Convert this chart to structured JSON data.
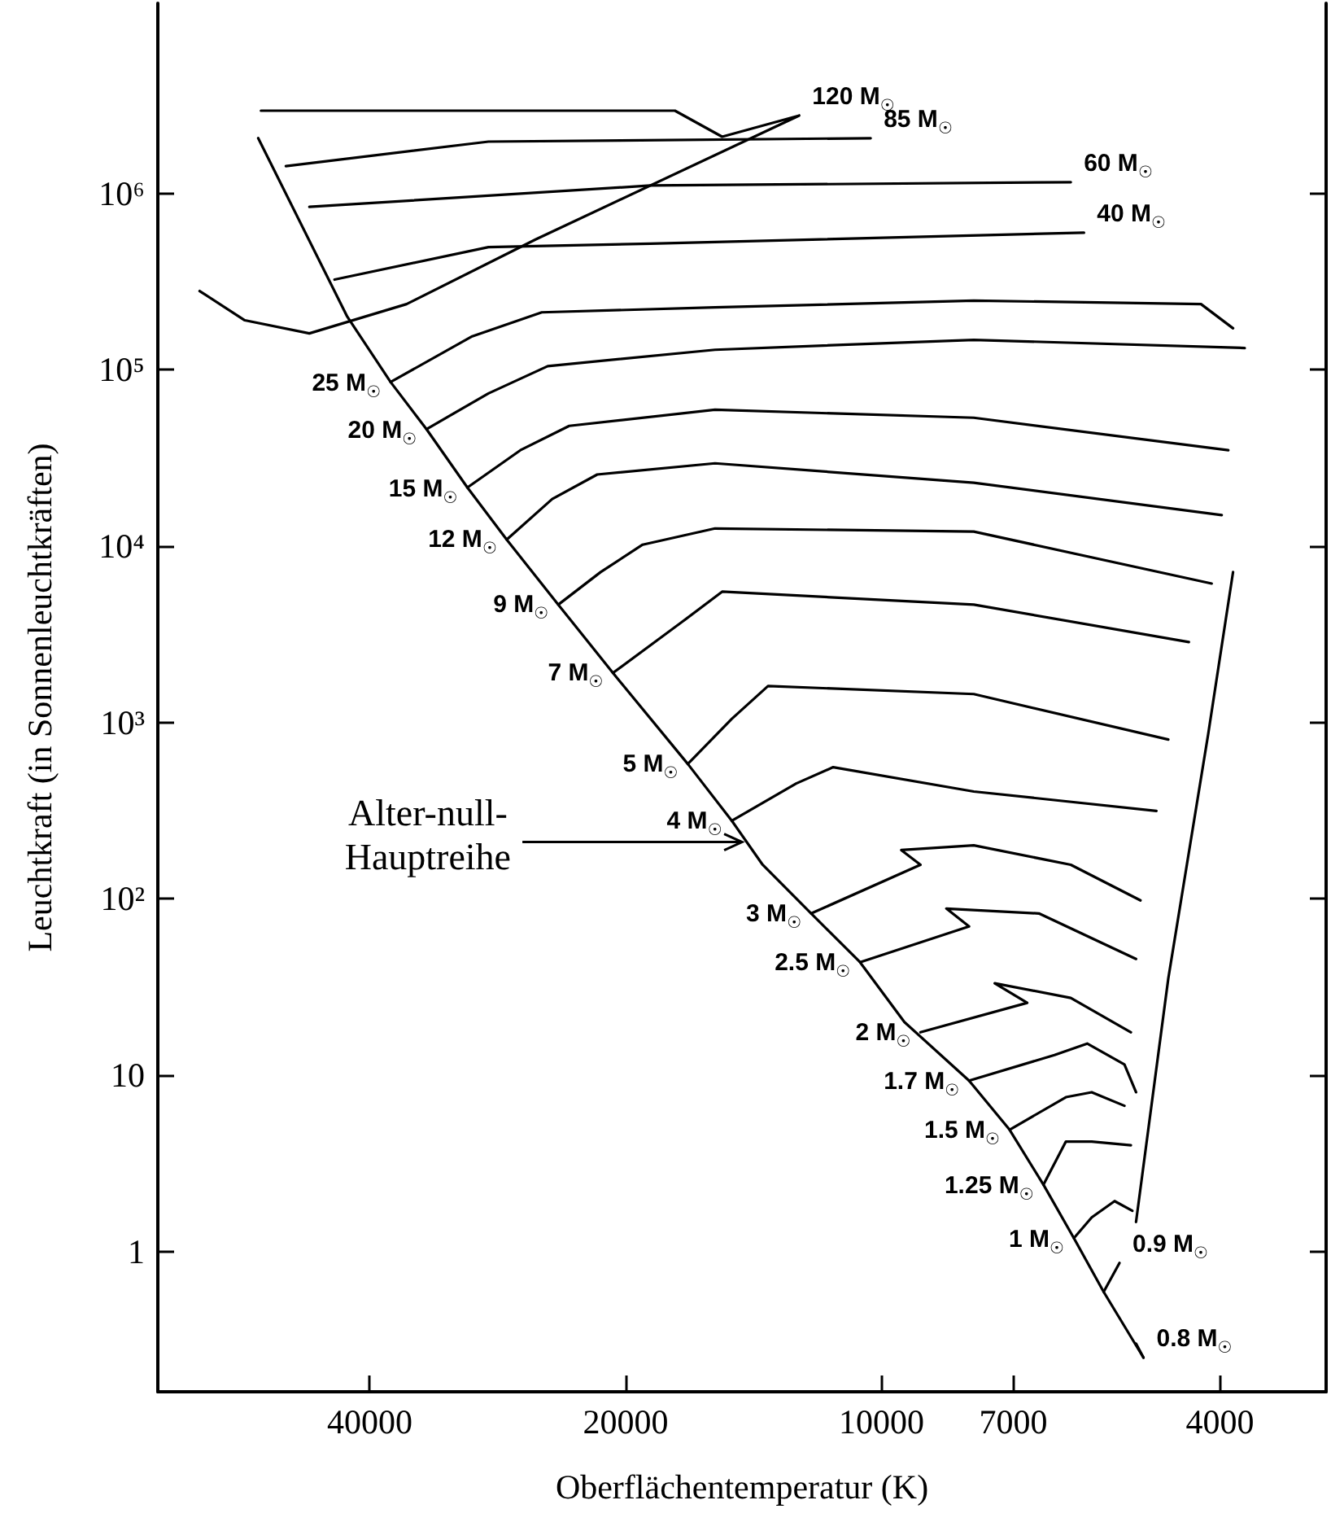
{
  "chart_data": {
    "type": "line",
    "xlabel": "Oberflächentemperatur (K)",
    "ylabel": "Leuchtkraft (in Sonnenleuchtkräften)",
    "log": "xy",
    "grid": false,
    "xlim": [
      71000,
      3000
    ],
    "xticks": [
      40000,
      20000,
      10000,
      7000,
      4000
    ],
    "ylim": [
      0.16,
      12000000
    ],
    "yticks": [
      1,
      10,
      {
        "value": 100,
        "label": "10²"
      },
      {
        "value": 1000,
        "label": "10³"
      },
      {
        "value": 10000,
        "label": "10⁴"
      },
      {
        "value": 100000,
        "label": "10⁵"
      },
      {
        "value": 1000000,
        "label": "10⁶"
      }
    ],
    "series": [
      {
        "color": "#000000",
        "x": [
          54100,
          42500,
          37800,
          34300,
          30700,
          27600,
          24000,
          20700,
          16900,
          15000,
          13800,
          12100,
          10600,
          9400,
          7890,
          7070,
          6450,
          5940,
          5480,
          4920
        ],
        "values": [
          2060000,
          200000,
          85300,
          46100,
          21500,
          10900,
          4660,
          1910,
          582,
          277,
          156,
          82.6,
          43.7,
          20,
          9.3,
          4.9,
          2.39,
          1.19,
          0.59,
          0.25
        ]
      },
      {
        "name": "120 M$_{☉}$",
        "color": "#000000",
        "x": [
          12500,
          15400,
          17500,
          53700,
          null,
          12500,
          25500,
          36200,
          47100,
          56100,
          63400
        ],
        "values": [
          2770000,
          2100000,
          2950000,
          2950000,
          null,
          2770000,
          550000,
          236000,
          161000,
          191000,
          280000
        ]
      },
      {
        "name": "85 M$_{☉}$",
        "color": "#000000",
        "x": [
          10300,
          29000,
          50200
        ],
        "values": [
          2060000,
          1970000,
          1430000
        ]
      },
      {
        "name": "60 M$_{☉}$",
        "color": "#000000",
        "x": [
          5990,
          18700,
          47100
        ],
        "values": [
          1160000,
          1110000,
          840000
        ]
      },
      {
        "name": "40 M$_{☉}$",
        "color": "#000000",
        "x": [
          5780,
          18700,
          29000,
          44000
        ],
        "values": [
          600000,
          520000,
          497000,
          325000
        ]
      },
      {
        "name": "25 M$_{☉}$",
        "color": "#000000",
        "x": [
          37800,
          30300,
          25100,
          15700,
          7790,
          4210,
          3860
        ],
        "values": [
          85300,
          155000,
          212000,
          226000,
          247000,
          236000,
          172000
        ]
      },
      {
        "name": "20 M$_{☉}$",
        "color": "#000000",
        "x": [
          34300,
          29000,
          24700,
          15700,
          7790,
          3740
        ],
        "values": [
          46100,
          73500,
          105000,
          130000,
          148000,
          133000
        ]
      },
      {
        "name": "15 M$_{☉}$",
        "color": "#000000",
        "x": [
          30700,
          26600,
          23300,
          15700,
          7790,
          3910
        ],
        "values": [
          21500,
          35000,
          48100,
          59400,
          53500,
          35000
        ]
      },
      {
        "name": "12 M$_{☉}$",
        "color": "#000000",
        "x": [
          27600,
          24400,
          21600,
          15700,
          7790,
          3980
        ],
        "values": [
          10900,
          18500,
          25500,
          29500,
          22900,
          15000
        ]
      },
      {
        "name": "9 M$_{☉}$",
        "color": "#000000",
        "x": [
          24000,
          21400,
          19100,
          15700,
          7790,
          4090
        ],
        "values": [
          4660,
          7130,
          10200,
          12600,
          12100,
          6140
        ]
      },
      {
        "name": "7 M$_{☉}$",
        "color": "#000000",
        "x": [
          20700,
          17100,
          15400,
          7790,
          4350
        ],
        "values": [
          1910,
          3770,
          5520,
          4660,
          2860
        ]
      },
      {
        "name": "5 M$_{☉}$",
        "color": "#000000",
        "x": [
          16900,
          15000,
          13600,
          7790,
          4600
        ],
        "values": [
          582,
          1050,
          1610,
          1450,
          800
        ]
      },
      {
        "name": "4 M$_{☉}$",
        "color": "#000000",
        "x": [
          15000,
          12600,
          11400,
          7790,
          4750
        ],
        "values": [
          277,
          451,
          558,
          406,
          315
        ]
      },
      {
        "name": "3 M$_{☉}$",
        "color": "#000000",
        "x": [
          12100,
          9000,
          9480,
          7790,
          5990,
          4960
        ],
        "values": [
          82.6,
          156,
          189,
          201,
          156,
          98
        ]
      },
      {
        "name": "2.5 M$_{☉}$",
        "color": "#000000",
        "x": [
          10600,
          7890,
          8390,
          6530,
          5020
        ],
        "values": [
          43.7,
          69.7,
          88,
          82.6,
          45.6
        ]
      },
      {
        "name": "2 M$_{☉}$",
        "color": "#000000",
        "x": [
          9000,
          6740,
          7360,
          5990,
          5090
        ],
        "values": [
          17.5,
          25.7,
          33.2,
          27.4,
          17.5
        ]
      },
      {
        "name": "1.7 M$_{☉}$",
        "color": "#000000",
        "x": [
          7890,
          6260,
          5730,
          5180,
          5020
        ],
        "values": [
          9.3,
          13,
          15.1,
          11.5,
          8
        ]
      },
      {
        "name": "1.5 M$_{☉}$",
        "color": "#000000",
        "x": [
          7070,
          6070,
          5660,
          5180
        ],
        "values": [
          4.9,
          7.5,
          8,
          6.7
        ]
      },
      {
        "name": "1.25 M$_{☉}$",
        "color": "#000000",
        "x": [
          6450,
          6070,
          5660,
          5090
        ],
        "values": [
          2.39,
          4.2,
          4.2,
          4.0
        ]
      },
      {
        "name": "1 M$_{☉}$",
        "color": "#000000",
        "x": [
          5940,
          5660,
          5320,
          5070
        ],
        "values": [
          1.19,
          1.56,
          1.93,
          1.7
        ]
      },
      {
        "name": "0.9 M$_{☉}$",
        "color": "#000000",
        "x": [
          5250,
          5480
        ],
        "values": [
          0.86,
          0.59
        ]
      },
      {
        "name": "0.8 M$_{☉}$",
        "color": "#000000",
        "x": [
          4920,
          5020
        ],
        "values": [
          0.25,
          0.3
        ]
      },
      {
        "color": "#000000",
        "x": [
          5020,
          4600,
          4130,
          3860
        ],
        "values": [
          1.47,
          35.3,
          853,
          7130
        ]
      }
    ],
    "annotations": [
      {
        "text": "Alter-null-\nHauptreihe",
        "x": 14400,
        "y": 210
      }
    ]
  }
}
